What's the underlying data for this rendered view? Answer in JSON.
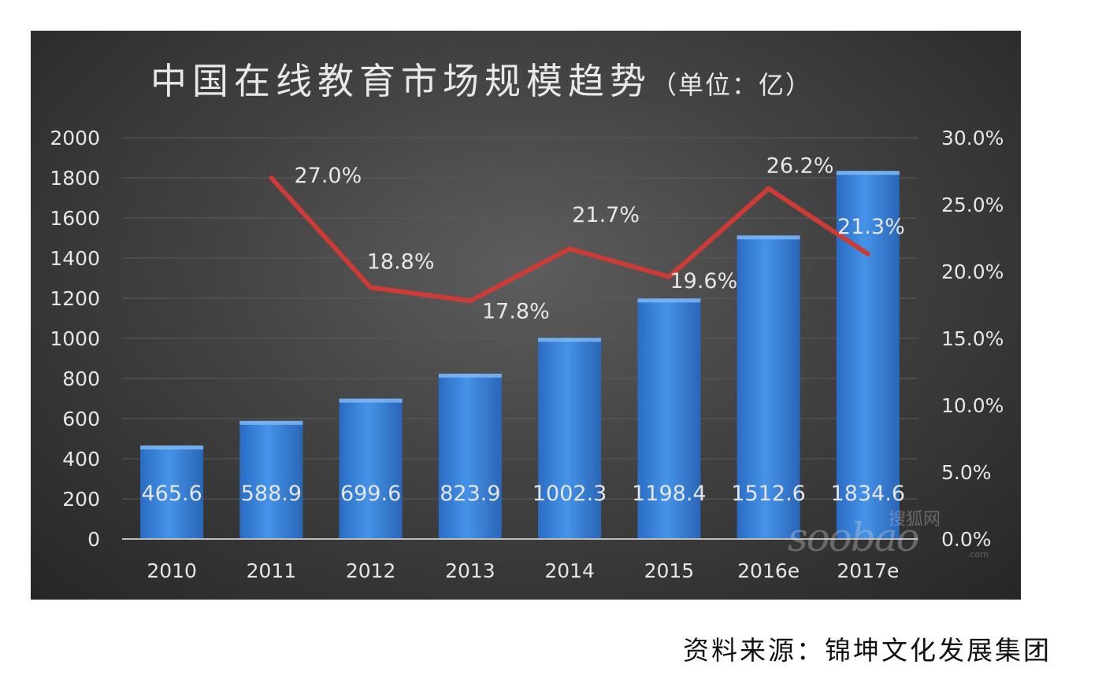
{
  "colors": {
    "bar": "#3e8be0",
    "line": "#cc3b35",
    "text": "#e6e6e6",
    "grid": "#5a5a5a"
  },
  "source": "资料来源：锦坤文化发展集团",
  "watermark": {
    "main": "soobao",
    "cn": "搜狐网",
    "domain": ".com"
  },
  "chart_data": {
    "type": "bar",
    "title": "中国在线教育市场规模趋势",
    "title_unit": "（单位：亿）",
    "categories": [
      "2010",
      "2011",
      "2012",
      "2013",
      "2014",
      "2015",
      "2016e",
      "2017e"
    ],
    "series": [
      {
        "type": "bar",
        "axis": "left",
        "values": [
          465.6,
          588.9,
          699.6,
          823.9,
          1002.3,
          1198.4,
          1512.6,
          1834.6
        ],
        "labels": [
          "465.6",
          "588.9",
          "699.6",
          "823.9",
          "1002.3",
          "1198.4",
          "1512.6",
          "1834.6"
        ]
      },
      {
        "type": "line",
        "axis": "right",
        "values": [
          null,
          27.0,
          18.8,
          17.8,
          21.7,
          19.6,
          26.2,
          21.3
        ],
        "labels": [
          "",
          "27.0%",
          "18.8%",
          "17.8%",
          "21.7%",
          "19.6%",
          "26.2%",
          "21.3%"
        ]
      }
    ],
    "y_left": {
      "ylim": [
        0,
        2000
      ],
      "ticks": [
        "0",
        "200",
        "400",
        "600",
        "800",
        "1000",
        "1200",
        "1400",
        "1600",
        "1800",
        "2000"
      ]
    },
    "y_right": {
      "ylim": [
        0,
        30
      ],
      "ticks": [
        "0.0%",
        "5.0%",
        "10.0%",
        "15.0%",
        "20.0%",
        "25.0%",
        "30.0%"
      ]
    },
    "grid": true,
    "legend": "none"
  }
}
